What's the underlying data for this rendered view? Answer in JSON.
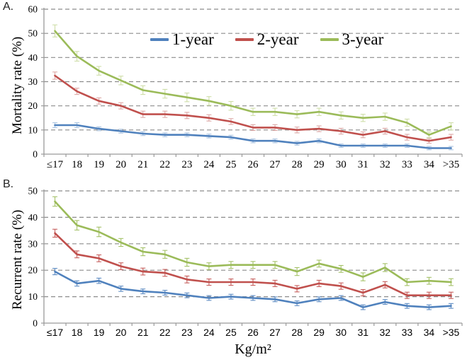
{
  "panels": {
    "a": {
      "label": "A."
    },
    "b": {
      "label": "B."
    }
  },
  "x_axis_title": "Kg/m²",
  "legend": {
    "items": [
      {
        "label": "1-year",
        "color": "#4F81BD"
      },
      {
        "label": "2-year",
        "color": "#C0504D"
      },
      {
        "label": "3-year",
        "color": "#9BBB59"
      }
    ]
  },
  "chart_data": [
    {
      "type": "line",
      "panel": "A",
      "title": "",
      "ylabel": "Mortality rate (%)",
      "xlabel": "Kg/m²",
      "ylim": [
        0,
        60
      ],
      "ytick_step": 10,
      "grid": true,
      "legend_position": "inside-top-center",
      "categories": [
        "≤17",
        "18",
        "19",
        "20",
        "21",
        "22",
        "23",
        "24",
        "25",
        "26",
        "27",
        "28",
        "29",
        "30",
        "31",
        "32",
        "33",
        "34",
        ">35"
      ],
      "series": [
        {
          "name": "1-year",
          "color": "#4F81BD",
          "error_color": "#A8C2E0",
          "values": [
            12,
            12,
            10.5,
            9.5,
            8.5,
            8,
            8,
            7.5,
            7,
            5.5,
            5.5,
            4.5,
            5.5,
            3.5,
            3.5,
            3.5,
            3.5,
            2.5,
            2.5
          ],
          "errors": [
            1,
            1,
            0.8,
            0.8,
            0.8,
            0.8,
            0.8,
            0.8,
            0.8,
            0.8,
            0.8,
            0.8,
            0.8,
            0.7,
            0.7,
            0.7,
            0.7,
            0.7,
            0.7
          ]
        },
        {
          "name": "2-year",
          "color": "#C0504D",
          "error_color": "#DBA5A3",
          "values": [
            32.5,
            26,
            22,
            20,
            16.5,
            16.5,
            16,
            15,
            13.5,
            11,
            11,
            10,
            10.5,
            9.5,
            8,
            9.5,
            7,
            5.5,
            7
          ],
          "errors": [
            1.5,
            1.3,
            1.3,
            1.3,
            1.3,
            1.3,
            1.3,
            1.3,
            1.2,
            1.2,
            1.2,
            1.2,
            1.2,
            1.2,
            1.2,
            1.2,
            1.2,
            1,
            1.2
          ]
        },
        {
          "name": "3-year",
          "color": "#9BBB59",
          "error_color": "#CCDCA4",
          "values": [
            51,
            40.5,
            34.5,
            30.5,
            26.5,
            25,
            23.5,
            22,
            20,
            17.5,
            17.5,
            16.5,
            17.5,
            16,
            15,
            15.5,
            13,
            8,
            11.5
          ],
          "errors": [
            2.5,
            2,
            1.8,
            1.8,
            1.8,
            1.8,
            1.8,
            1.8,
            1.8,
            1.5,
            1.5,
            1.5,
            1.5,
            1.5,
            1.5,
            1.5,
            1.5,
            1.2,
            1.5
          ]
        }
      ]
    },
    {
      "type": "line",
      "panel": "B",
      "title": "",
      "ylabel": "Recurrent rate (%)",
      "xlabel": "Kg/m²",
      "ylim": [
        0,
        50
      ],
      "ytick_step": 10,
      "grid": true,
      "legend_position": "none",
      "categories": [
        "≤17",
        "18",
        "19",
        "20",
        "21",
        "22",
        "23",
        "24",
        "25",
        "26",
        "27",
        "28",
        "29",
        "30",
        "31",
        "32",
        "33",
        "34",
        ">35"
      ],
      "series": [
        {
          "name": "1-year",
          "color": "#4F81BD",
          "error_color": "#4F81BD",
          "values": [
            19.5,
            15,
            16,
            13,
            12,
            11.5,
            10.5,
            9.5,
            10,
            9.5,
            9,
            7.5,
            9,
            9.5,
            6,
            8,
            6.5,
            6,
            6.5
          ],
          "errors": [
            1.2,
            1,
            1,
            1,
            0.9,
            0.9,
            0.9,
            0.9,
            0.9,
            0.9,
            0.9,
            0.9,
            0.9,
            0.9,
            0.9,
            0.9,
            0.9,
            0.9,
            0.9
          ]
        },
        {
          "name": "2-year",
          "color": "#C0504D",
          "error_color": "#C0504D",
          "values": [
            34,
            26,
            24.5,
            21.5,
            19.5,
            19,
            16.5,
            15.5,
            15.5,
            15.5,
            15,
            13,
            15,
            14,
            11.5,
            14.5,
            10.5,
            10.5,
            10.5
          ],
          "errors": [
            1.5,
            1.3,
            1.3,
            1.3,
            1.3,
            1.3,
            1.3,
            1.2,
            1.2,
            1.2,
            1.2,
            1.2,
            1.2,
            1.2,
            1.2,
            1.2,
            1.2,
            1.2,
            1.2
          ]
        },
        {
          "name": "3-year",
          "color": "#9BBB59",
          "error_color": "#9BBB59",
          "values": [
            46,
            37,
            34.5,
            30.5,
            27,
            26,
            23,
            21.5,
            22,
            22,
            22,
            19.5,
            22.5,
            20.5,
            17.5,
            21,
            15.5,
            16,
            15.5
          ],
          "errors": [
            1.8,
            1.8,
            1.8,
            1.5,
            1.5,
            1.5,
            1.5,
            1.3,
            1.3,
            1.3,
            1.3,
            1.5,
            1.3,
            1.3,
            1.5,
            1.5,
            1.3,
            1.3,
            1.3
          ]
        }
      ]
    }
  ]
}
